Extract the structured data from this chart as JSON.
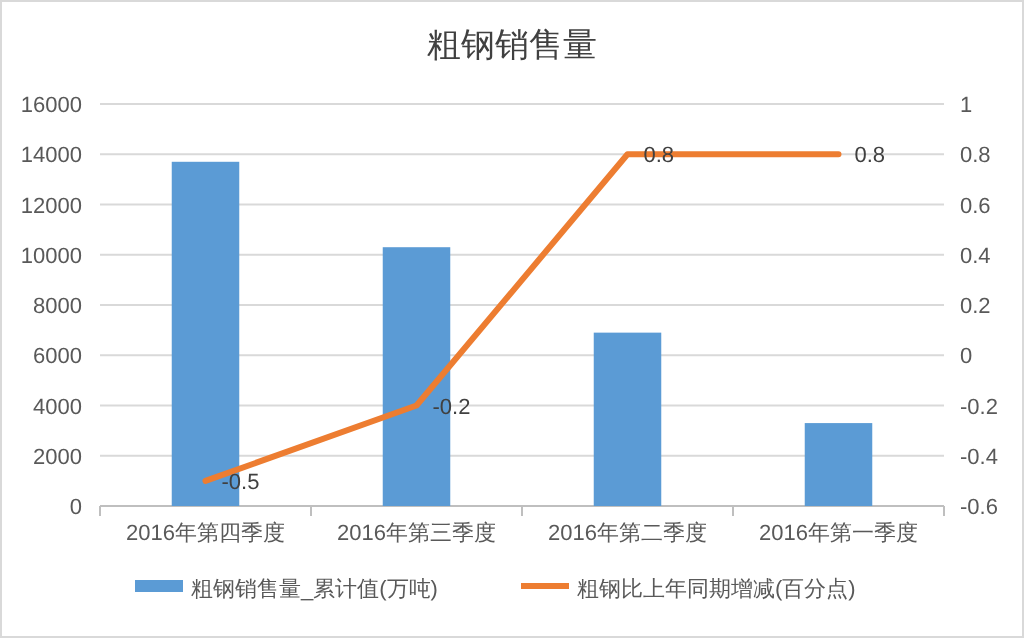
{
  "chart_data": {
    "type": "bar",
    "title": "粗钢销售量",
    "categories": [
      "2016年第四季度",
      "2016年第三季度",
      "2016年第二季度",
      "2016年第一季度"
    ],
    "series": [
      {
        "name": "粗钢销售量_累计值(万吨)",
        "color": "#5b9bd5",
        "values": [
          13700,
          10300,
          6900,
          3300
        ]
      },
      {
        "name": "粗钢比上年同期增减(百分点)",
        "type": "line",
        "axis": "y2",
        "color": "#ed7d31",
        "values": [
          -0.5,
          -0.2,
          0.8,
          0.8
        ],
        "value_labels": [
          "-0.5",
          "-0.2",
          "0.8",
          "0.8"
        ]
      }
    ],
    "ylim": [
      0,
      16000
    ],
    "yticks": [
      0,
      2000,
      4000,
      6000,
      8000,
      10000,
      12000,
      14000,
      16000
    ],
    "y2lim": [
      -0.6,
      1
    ],
    "y2ticks": [
      -0.6,
      -0.4,
      -0.2,
      0,
      0.2,
      0.4,
      0.6,
      0.8,
      1
    ],
    "grid": "y",
    "legend": "bottom",
    "marker": "none"
  }
}
